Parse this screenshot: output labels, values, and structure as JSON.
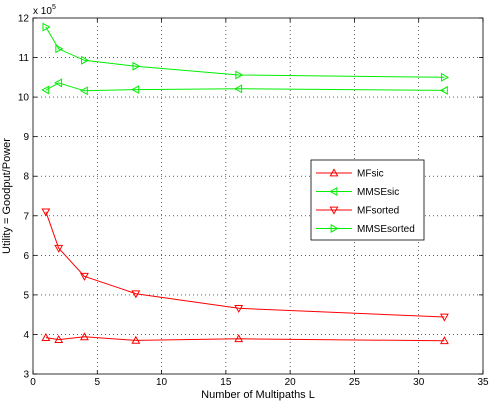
{
  "chart_data": {
    "type": "line",
    "xlabel": "Number of Multipaths L",
    "ylabel": "Utility = Goodput/Power",
    "y_multiplier_label": "x 10",
    "y_multiplier_exponent": "5",
    "xlim": [
      0,
      35
    ],
    "ylim": [
      3,
      12
    ],
    "x_ticks": [
      0,
      5,
      10,
      15,
      20,
      25,
      30,
      35
    ],
    "y_ticks": [
      3,
      4,
      5,
      6,
      7,
      8,
      9,
      10,
      11,
      12
    ],
    "grid": true,
    "legend_position": "center-right",
    "x": [
      1,
      2,
      4,
      8,
      16,
      32
    ],
    "series": [
      {
        "name": "MFsic",
        "color": "#ff0000",
        "marker": "triangle-up",
        "values": [
          3.92,
          3.87,
          3.94,
          3.85,
          3.89,
          3.84
        ]
      },
      {
        "name": "MMSEsic",
        "color": "#00ee00",
        "marker": "triangle-left",
        "values": [
          10.18,
          10.36,
          10.16,
          10.19,
          10.21,
          10.17
        ]
      },
      {
        "name": "MFsorted",
        "color": "#ff0000",
        "marker": "triangle-down",
        "values": [
          7.1,
          6.18,
          5.47,
          5.03,
          4.66,
          4.44
        ]
      },
      {
        "name": "MMSEsorted",
        "color": "#00ee00",
        "marker": "triangle-right",
        "values": [
          11.77,
          11.22,
          10.93,
          10.78,
          10.56,
          10.5
        ]
      }
    ]
  }
}
